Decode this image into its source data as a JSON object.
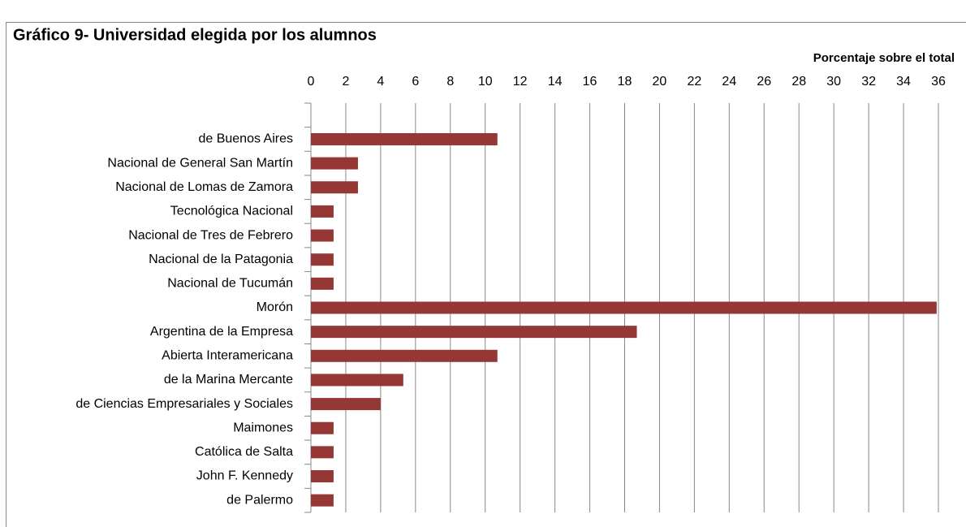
{
  "chart_data": {
    "type": "bar",
    "orientation": "horizontal",
    "title": "Gráfico 9- Universidad elegida por los alumnos",
    "x_axis_label": "Porcentaje sobre el total",
    "categories": [
      null,
      "de Buenos Aires",
      "Nacional de General San Martín",
      "Nacional de Lomas de Zamora",
      "Tecnológica Nacional",
      "Nacional de Tres de Febrero",
      "Nacional de la Patagonia",
      "Nacional de Tucumán",
      "Morón",
      "Argentina de la Empresa",
      "Abierta Interamericana",
      "de la Marina Mercante",
      "de Ciencias Empresariales y Sociales",
      "Maimones",
      "Católica de Salta",
      "John F. Kennedy",
      "de Palermo"
    ],
    "values": [
      null,
      10.7,
      2.7,
      2.7,
      1.3,
      1.3,
      1.3,
      1.3,
      35.9,
      18.7,
      10.7,
      5.3,
      4.0,
      1.3,
      1.3,
      1.3,
      1.3
    ],
    "color": "#953735",
    "xlim": [
      0,
      36
    ],
    "xticks": [
      0,
      2,
      4,
      6,
      8,
      10,
      12,
      14,
      16,
      18,
      20,
      22,
      24,
      26,
      28,
      30,
      32,
      34,
      36
    ],
    "grid": true,
    "axis_position": "top"
  }
}
